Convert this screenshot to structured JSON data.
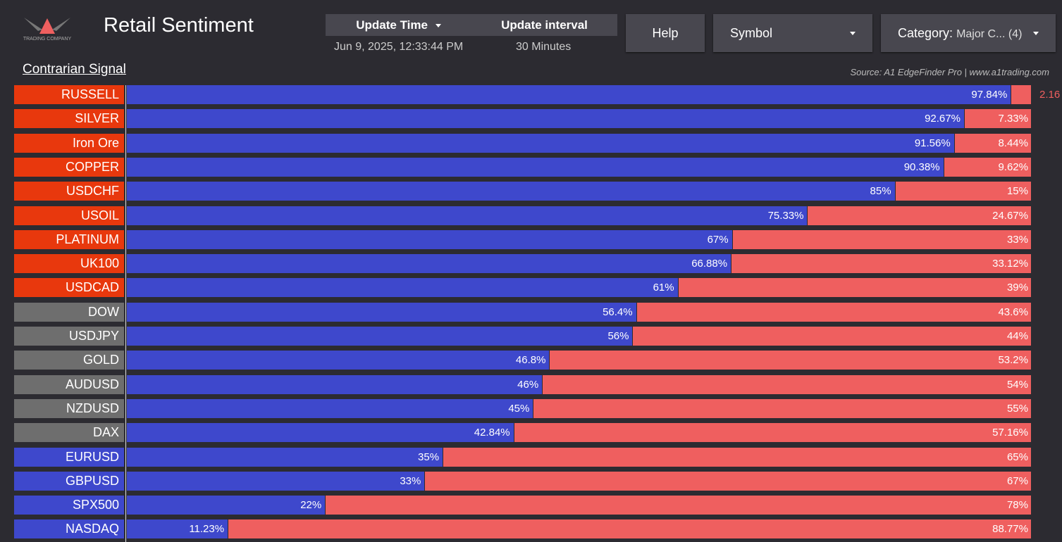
{
  "header": {
    "title": "Retail Sentiment",
    "logo_text": "TRADING COMPANY",
    "update_time_label": "Update Time",
    "update_time_value": "Jun 9, 2025, 12:33:44 PM",
    "update_interval_label": "Update interval",
    "update_interval_value": "30 Minutes",
    "help_label": "Help",
    "symbol_label": "Symbol",
    "category_label": "Category:",
    "category_value": "Major C... (4)"
  },
  "signal_label": "Contrarian Signal",
  "source": "Source: A1 EdgeFinder Pro | www.a1trading.com",
  "colors": {
    "long": "#3e48cc",
    "short": "#ef5f5f",
    "signal_sell": "#e8380d",
    "signal_neutral": "#6e6e6e",
    "signal_buy": "#3e48cc"
  },
  "chart_data": {
    "type": "bar",
    "orientation": "horizontal-stacked",
    "xlim": [
      0,
      100
    ],
    "categories": [
      "RUSSELL",
      "SILVER",
      "Iron Ore",
      "COPPER",
      "USDCHF",
      "USOIL",
      "PLATINUM",
      "UK100",
      "USDCAD",
      "DOW",
      "USDJPY",
      "GOLD",
      "AUDUSD",
      "NZDUSD",
      "DAX",
      "EURUSD",
      "GBPUSD",
      "SPX500",
      "NASDAQ"
    ],
    "signals": [
      "sell",
      "sell",
      "sell",
      "sell",
      "sell",
      "sell",
      "sell",
      "sell",
      "sell",
      "neutral",
      "neutral",
      "neutral",
      "neutral",
      "neutral",
      "neutral",
      "buy",
      "buy",
      "buy",
      "buy"
    ],
    "series": [
      {
        "values": [
          97.84,
          92.67,
          91.56,
          90.38,
          85,
          75.33,
          67,
          66.88,
          61,
          56.4,
          56,
          46.8,
          46,
          45,
          42.84,
          35,
          33,
          22,
          11.23
        ],
        "labels": [
          "97.84%",
          "92.67%",
          "91.56%",
          "90.38%",
          "85%",
          "75.33%",
          "67%",
          "66.88%",
          "61%",
          "56.4%",
          "56%",
          "46.8%",
          "46%",
          "45%",
          "42.84%",
          "35%",
          "33%",
          "22%",
          "11.23%"
        ]
      },
      {
        "values": [
          2.16,
          7.33,
          8.44,
          9.62,
          15,
          24.67,
          33,
          33.12,
          39,
          43.6,
          44,
          53.2,
          54,
          55,
          57.16,
          65,
          67,
          78,
          88.77
        ],
        "labels": [
          "2.16",
          "7.33%",
          "8.44%",
          "9.62%",
          "15%",
          "24.67%",
          "33%",
          "33.12%",
          "39%",
          "43.6%",
          "44%",
          "53.2%",
          "54%",
          "55%",
          "57.16%",
          "65%",
          "67%",
          "78%",
          "88.77%"
        ]
      }
    ]
  }
}
